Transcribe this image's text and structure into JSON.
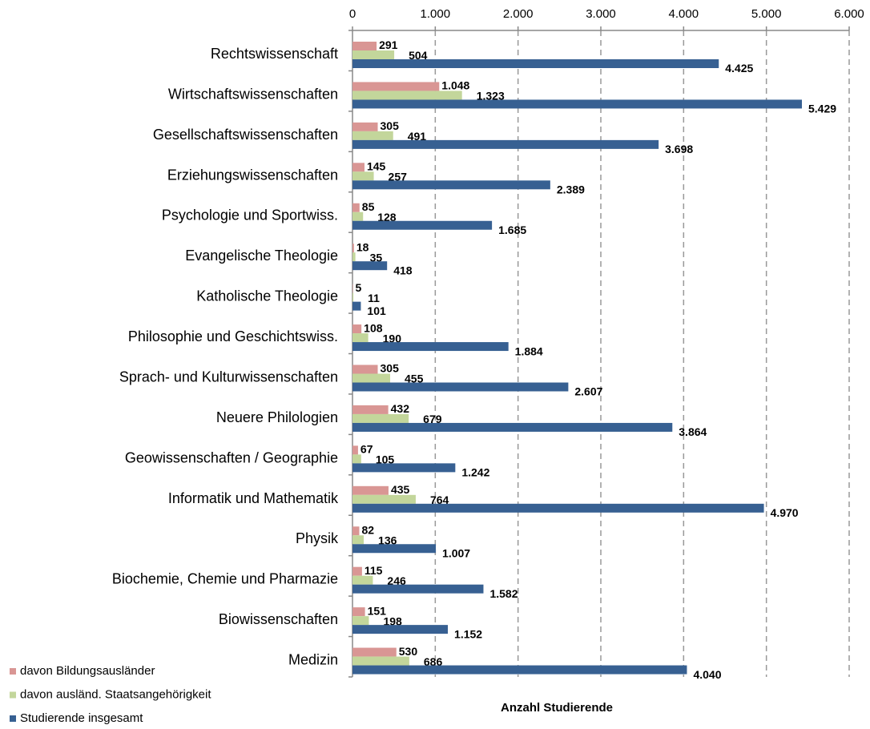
{
  "chart_data": {
    "type": "hbar",
    "xlabel": "Anzahl Studierende",
    "categories": [
      "Rechtswissenschaft",
      "Wirtschaftswissenschaften",
      "Gesellschaftswissenschaften",
      "Erziehungswissenschaften",
      "Psychologie und Sportwiss.",
      "Evangelische Theologie",
      "Katholische Theologie",
      "Philosophie und Geschichtswiss.",
      "Sprach- und Kulturwissenschaften",
      "Neuere Philologien",
      "Geowissenschaften / Geographie",
      "Informatik und Mathematik",
      "Physik",
      "Biochemie, Chemie und Pharmazie",
      "Biowissenschaften",
      "Medizin"
    ],
    "series": [
      {
        "name": "davon Bildungsausländer",
        "color": "#d99694",
        "values": [
          291,
          1048,
          305,
          145,
          85,
          18,
          5,
          108,
          305,
          432,
          67,
          435,
          82,
          115,
          151,
          530
        ],
        "value_labels": [
          "291",
          "1.048",
          "305",
          "145",
          "85",
          "18",
          "5",
          "108",
          "305",
          "432",
          "67",
          "435",
          "82",
          "115",
          "151",
          "530"
        ]
      },
      {
        "name": "davon ausländ. Staatsangehörigkeit",
        "color": "#c3d69b",
        "values": [
          504,
          1323,
          491,
          257,
          128,
          35,
          11,
          190,
          455,
          679,
          105,
          764,
          136,
          246,
          198,
          686
        ],
        "value_labels": [
          "504",
          "1.323",
          "491",
          "257",
          "128",
          "35",
          "11",
          "190",
          "455",
          "679",
          "105",
          "764",
          "136",
          "246",
          "198",
          "686"
        ]
      },
      {
        "name": "Studierende insgesamt",
        "color": "#376092",
        "values": [
          4425,
          5429,
          3698,
          2389,
          1685,
          418,
          101,
          1884,
          2607,
          3864,
          1242,
          4970,
          1007,
          1582,
          1152,
          4040
        ],
        "value_labels": [
          "4.425",
          "5.429",
          "3.698",
          "2.389",
          "1.685",
          "418",
          "101",
          "1.884",
          "2.607",
          "3.864",
          "1.242",
          "4.970",
          "1.007",
          "1.582",
          "1.152",
          "4.040"
        ]
      }
    ],
    "xlim": [
      0,
      6000
    ],
    "xticks": [
      0,
      {
        "value": 1000,
        "label": "1.000"
      },
      {
        "value": 2000,
        "label": "2.000"
      },
      {
        "value": 3000,
        "label": "3.000"
      },
      {
        "value": 4000,
        "label": "4.000"
      },
      {
        "value": 5000,
        "label": "5.000"
      },
      {
        "value": 6000,
        "label": "6.000"
      }
    ],
    "grid": true,
    "legend": "bottom-left"
  }
}
